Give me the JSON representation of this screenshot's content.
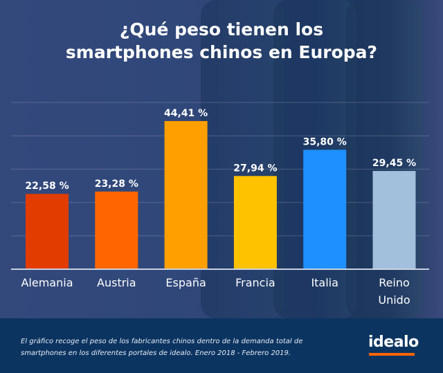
{
  "chart_data": {
    "type": "bar",
    "title": "¿Qué peso tienen los smartphones chinos en Europa?",
    "title_lines": [
      "¿Qué peso tienen los",
      "smartphones chinos en Europa?"
    ],
    "categories": [
      "Alemania",
      "Austria",
      "España",
      "Francia",
      "Italia",
      "Reino Unido"
    ],
    "category_lines": [
      [
        "Alemania"
      ],
      [
        "Austria"
      ],
      [
        "España"
      ],
      [
        "Francia"
      ],
      [
        "Italia"
      ],
      [
        "Reino",
        "Unido"
      ]
    ],
    "values": [
      22.58,
      23.28,
      44.41,
      27.94,
      35.8,
      29.45
    ],
    "value_labels": [
      "22,58 %",
      "23,28 %",
      "44,41 %",
      "27,94 %",
      "35,80 %",
      "29,45 %"
    ],
    "colors": [
      "#e23c00",
      "#ff6600",
      "#ffa000",
      "#ffc200",
      "#1e90ff",
      "#a2bfdc"
    ],
    "xlabel": "",
    "ylabel": "",
    "ylim": [
      0,
      50
    ],
    "gridlines": [
      10,
      20,
      30,
      40,
      50
    ],
    "grid": true,
    "legend": "none"
  },
  "footer": {
    "note_line1": "El gráfico recoge el peso de los fabricantes chinos dentro de la demanda total de",
    "note_line2": "smartphones en los diferentes portales de idealo. Enero 2018 - Febrero 2019.",
    "logo": "idealo",
    "brand_color": "#ff6600"
  }
}
